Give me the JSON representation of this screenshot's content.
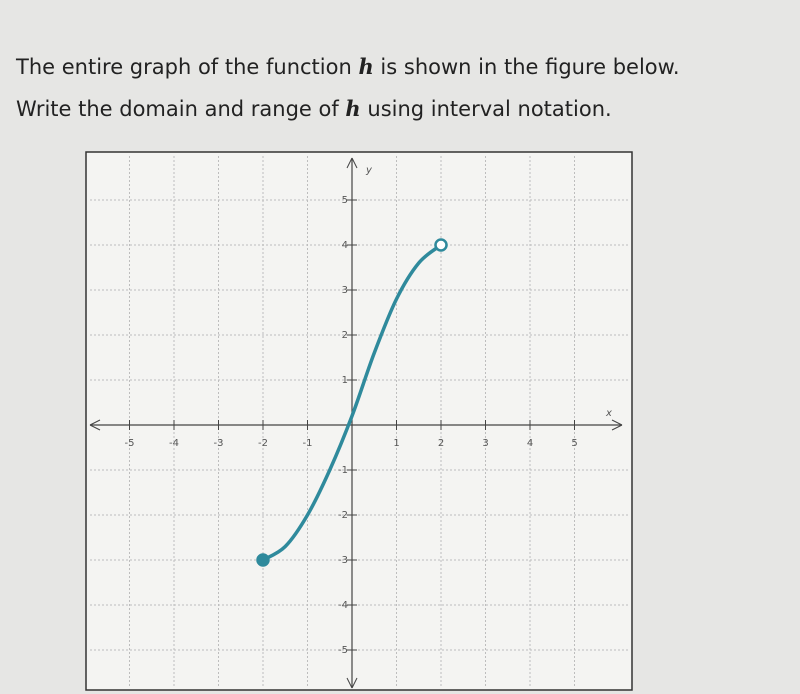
{
  "question": {
    "lines": [
      [
        "The entire graph of the function ",
        "h",
        " is shown in the figure below."
      ],
      [
        "Write the domain and range of ",
        "h",
        " using interval notation."
      ]
    ]
  },
  "chart_data": {
    "type": "line",
    "x": [
      -2,
      -1.5,
      -1,
      -0.5,
      0,
      0.5,
      1,
      1.5,
      2
    ],
    "series": [
      {
        "color": "#2f8a9c",
        "values": [
          -3,
          -2.7,
          -2,
          -1,
          0.2,
          1.6,
          2.8,
          3.6,
          4
        ]
      }
    ],
    "start_marker": "closed",
    "end_marker": "open",
    "xlabel": "x",
    "ylabel": "y",
    "xlim": [
      -6,
      6
    ],
    "ylim": [
      -6,
      6
    ],
    "xticks": [
      -5,
      -4,
      -3,
      -2,
      -1,
      1,
      2,
      3,
      4,
      5
    ],
    "yticks": [
      -5,
      -4,
      -3,
      -2,
      -1,
      1,
      2,
      3,
      4,
      5
    ],
    "grid": true
  }
}
